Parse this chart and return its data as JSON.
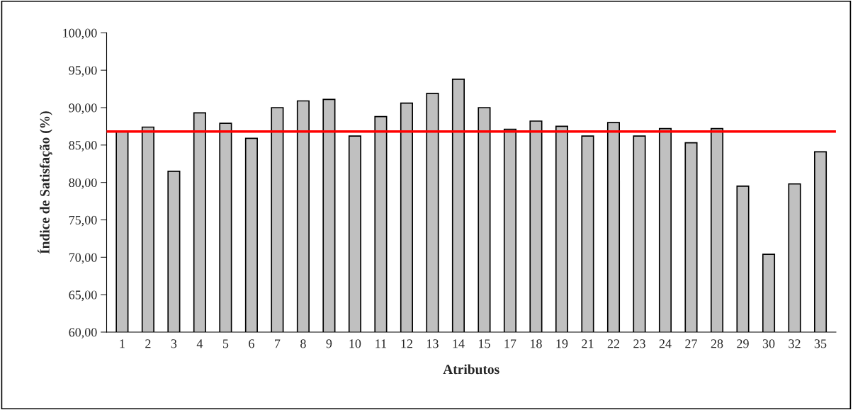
{
  "chart_data": {
    "type": "bar",
    "xlabel": "Atributos",
    "ylabel": "Índice de Satisfação (%)",
    "categories": [
      "1",
      "2",
      "3",
      "4",
      "5",
      "6",
      "7",
      "8",
      "9",
      "10",
      "11",
      "12",
      "13",
      "14",
      "15",
      "17",
      "18",
      "19",
      "21",
      "22",
      "23",
      "24",
      "27",
      "28",
      "29",
      "30",
      "32",
      "35"
    ],
    "values": [
      86.8,
      87.4,
      81.5,
      89.3,
      87.9,
      85.9,
      90.0,
      90.9,
      91.1,
      86.2,
      88.8,
      90.6,
      91.9,
      93.8,
      90.0,
      87.1,
      88.2,
      87.5,
      86.2,
      88.0,
      86.2,
      87.2,
      85.3,
      87.2,
      79.5,
      70.4,
      79.8,
      84.1
    ],
    "color": "#c0c0c0",
    "ylim": [
      60,
      100
    ],
    "yticks": [
      {
        "value": 60,
        "label": "60,00"
      },
      {
        "value": 65,
        "label": "65,00"
      },
      {
        "value": 70,
        "label": "70,00"
      },
      {
        "value": 75,
        "label": "75,00"
      },
      {
        "value": 80,
        "label": "80,00"
      },
      {
        "value": 85,
        "label": "85,00"
      },
      {
        "value": 90,
        "label": "90,00"
      },
      {
        "value": 95,
        "label": "95,00"
      },
      {
        "value": 100,
        "label": "100,00"
      }
    ],
    "ref_lines": [
      {
        "axis": "y",
        "value": 86.8,
        "color": "#ff0000"
      }
    ],
    "grid": false,
    "legend": false
  }
}
